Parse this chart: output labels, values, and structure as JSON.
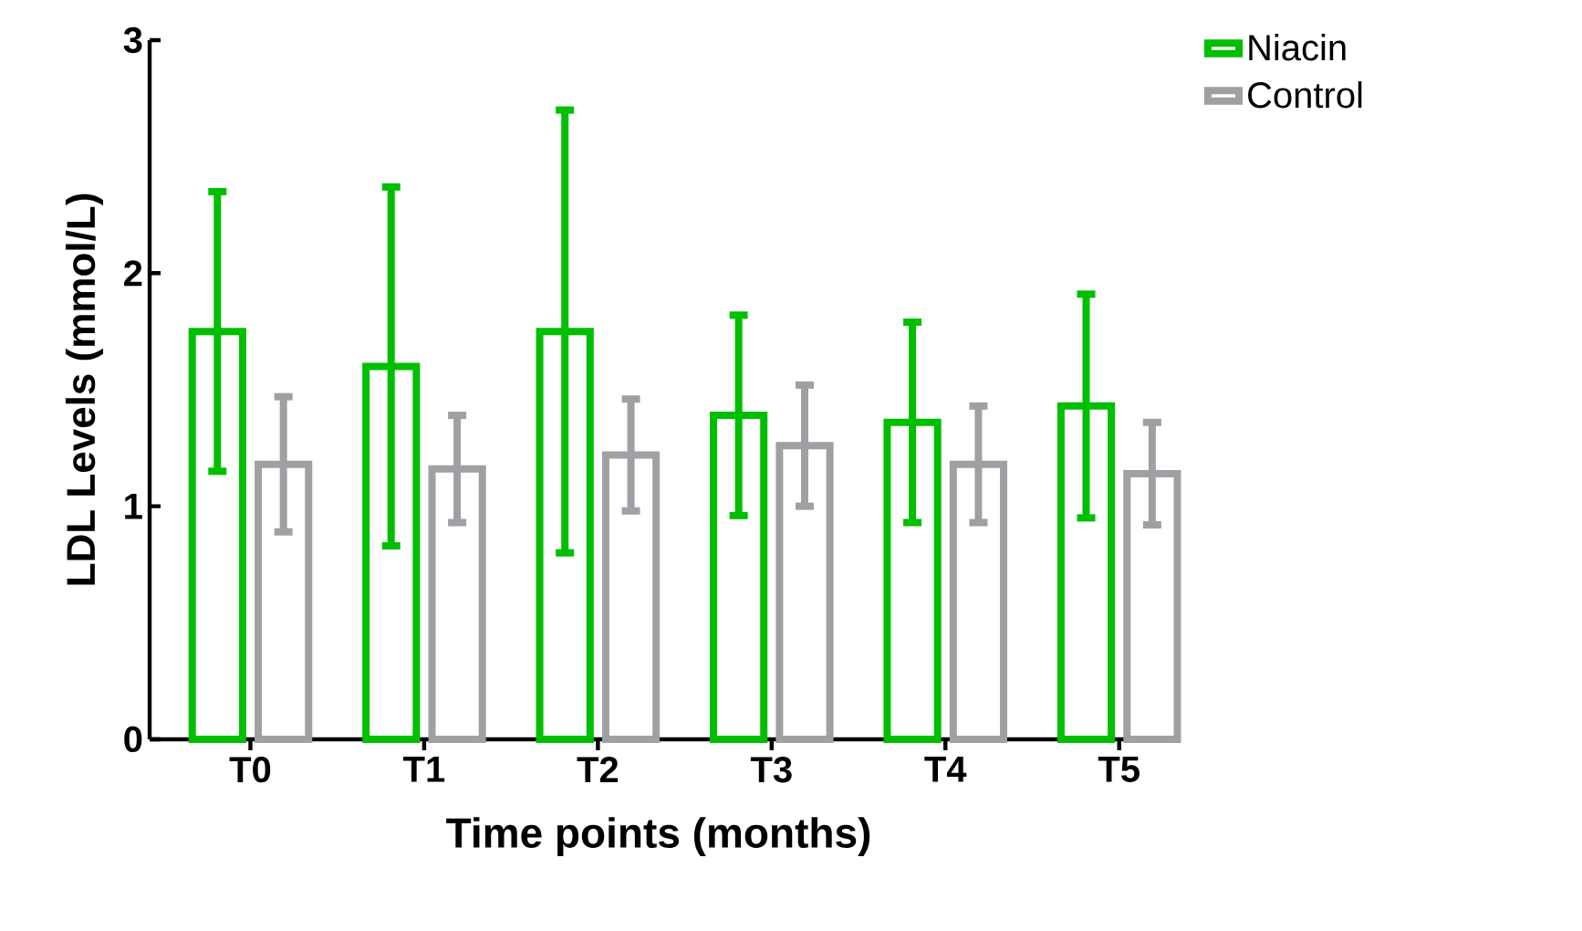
{
  "chart_data": {
    "type": "bar",
    "xlabel": "Time points (months)",
    "ylabel": "LDL Levels (mmol/L)",
    "categories": [
      "T0",
      "T1",
      "T2",
      "T3",
      "T4",
      "T5"
    ],
    "series": [
      {
        "name": "Niacin",
        "color": "#00bf00",
        "values": [
          1.75,
          1.6,
          1.75,
          1.39,
          1.36,
          1.43
        ],
        "errors": [
          0.6,
          0.77,
          0.95,
          0.43,
          0.43,
          0.48
        ]
      },
      {
        "name": "Control",
        "color": "#a0a0a4",
        "values": [
          1.18,
          1.16,
          1.22,
          1.26,
          1.18,
          1.14
        ],
        "errors": [
          0.29,
          0.23,
          0.24,
          0.26,
          0.25,
          0.22
        ]
      }
    ],
    "ylim": [
      0,
      3
    ],
    "yticks": [
      0,
      1,
      2,
      3
    ],
    "legend": "top right",
    "grid": false
  }
}
